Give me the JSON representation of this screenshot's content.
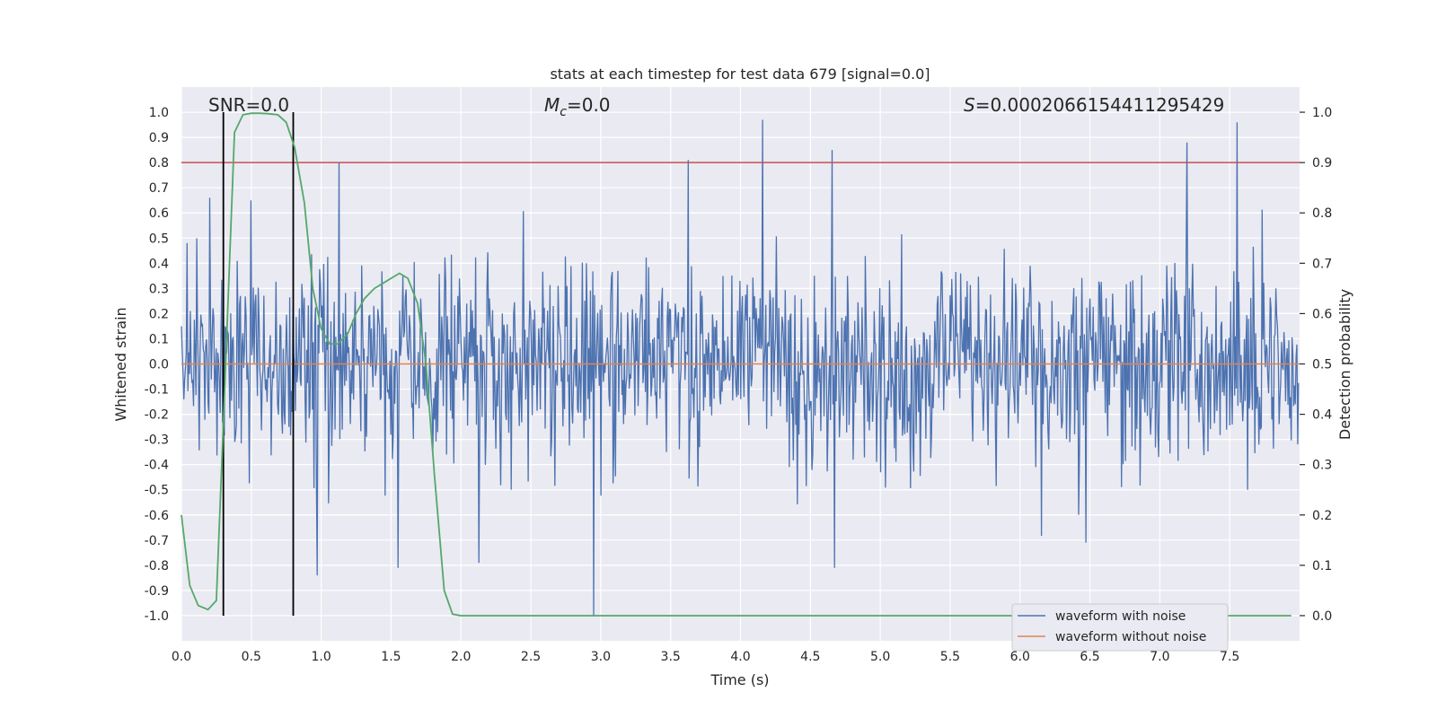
{
  "chart_data": {
    "type": "line",
    "title": "stats at each timestep for test data 679 [signal=0.0]",
    "xlabel": "Time (s)",
    "ylabel": "Whitened strain",
    "y2label": "Detection probability",
    "xlim": [
      0.0,
      8.0
    ],
    "ylim": [
      -1.1,
      1.1
    ],
    "y2lim": [
      -0.05,
      1.05
    ],
    "x_ticks": [
      "0.0",
      "0.5",
      "1.0",
      "1.5",
      "2.0",
      "2.5",
      "3.0",
      "3.5",
      "4.0",
      "4.5",
      "5.0",
      "5.5",
      "6.0",
      "6.5",
      "7.0",
      "7.5"
    ],
    "y_ticks": [
      "1.0",
      "0.9",
      "0.8",
      "0.7",
      "0.6",
      "0.5",
      "0.4",
      "0.3",
      "0.2",
      "0.1",
      "0.0",
      "-0.1",
      "-0.2",
      "-0.3",
      "-0.4",
      "-0.5",
      "-0.6",
      "-0.7",
      "-0.8",
      "-0.9",
      "-1.0"
    ],
    "y2_ticks": [
      "1.0",
      "0.9",
      "0.8",
      "0.7",
      "0.6",
      "0.5",
      "0.4",
      "0.3",
      "0.2",
      "0.1",
      "0.0"
    ],
    "grid": true,
    "annotations": {
      "snr": "SNR=0.0",
      "mc": "=0.0",
      "mc_symbol": "M",
      "mc_sub": "c",
      "s": "=0.0002066154411295429",
      "s_symbol": "S"
    },
    "threshold": {
      "y2": 0.9,
      "color": "#c44e52"
    },
    "vertical_markers": {
      "x": [
        0.3,
        0.8
      ],
      "color": "#000000"
    },
    "series": [
      {
        "name": "waveform with noise",
        "color": "#4c72b0",
        "axis": "left",
        "kind": "noise",
        "seed": 679,
        "sample_rate_hz": 2048,
        "std": 0.19,
        "peak_points": [
          {
            "x": 0.2,
            "y": 0.66
          },
          {
            "x": 0.5,
            "y": 0.65
          },
          {
            "x": 1.13,
            "y": 0.8
          },
          {
            "x": 3.63,
            "y": 0.81
          },
          {
            "x": 4.16,
            "y": 0.97
          },
          {
            "x": 4.66,
            "y": 0.85
          },
          {
            "x": 7.2,
            "y": 0.88
          },
          {
            "x": 7.56,
            "y": 0.96
          },
          {
            "x": 0.97,
            "y": -0.84
          },
          {
            "x": 1.55,
            "y": -0.81
          },
          {
            "x": 2.13,
            "y": -0.79
          },
          {
            "x": 2.95,
            "y": -1.0
          },
          {
            "x": 4.68,
            "y": -0.81
          },
          {
            "x": 6.48,
            "y": -0.71
          }
        ]
      },
      {
        "name": "waveform without noise",
        "color": "#dd8452",
        "axis": "left",
        "x": [
          0.0,
          8.0
        ],
        "y": [
          0.0,
          0.0
        ]
      },
      {
        "name": "detection probability",
        "color": "#55a868",
        "axis": "right",
        "in_legend": false,
        "x": [
          0.0,
          0.06,
          0.12,
          0.19,
          0.25,
          0.31,
          0.38,
          0.44,
          0.5,
          0.56,
          0.62,
          0.69,
          0.75,
          0.81,
          0.88,
          0.94,
          1.0,
          1.06,
          1.12,
          1.19,
          1.25,
          1.31,
          1.38,
          1.44,
          1.5,
          1.56,
          1.62,
          1.69,
          1.75,
          1.81,
          1.88,
          1.94,
          2.0,
          2.5,
          3.0,
          4.0,
          5.0,
          6.0,
          7.0,
          7.94
        ],
        "y": [
          0.2,
          0.06,
          0.02,
          0.012,
          0.03,
          0.45,
          0.96,
          0.995,
          0.998,
          0.998,
          0.997,
          0.995,
          0.98,
          0.93,
          0.82,
          0.65,
          0.57,
          0.54,
          0.54,
          0.56,
          0.6,
          0.63,
          0.65,
          0.66,
          0.67,
          0.68,
          0.67,
          0.62,
          0.5,
          0.28,
          0.05,
          0.003,
          0.0,
          0.0,
          0.0,
          0.0,
          0.0,
          0.0,
          0.0,
          0.0
        ]
      }
    ],
    "legend": {
      "position": "lower-right",
      "entries": [
        {
          "label": "waveform with noise",
          "color": "#4c72b0"
        },
        {
          "label": "waveform without noise",
          "color": "#dd8452"
        }
      ]
    }
  }
}
